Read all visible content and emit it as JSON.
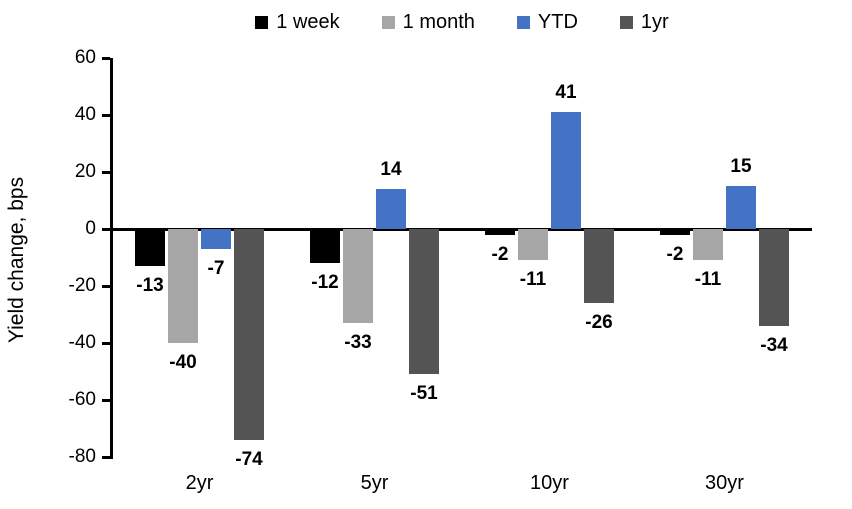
{
  "chart_data": {
    "type": "bar",
    "title": "",
    "xlabel": "",
    "ylabel": "Yield change, bps",
    "categories": [
      "2yr",
      "5yr",
      "10yr",
      "30yr"
    ],
    "series": [
      {
        "name": "1 week",
        "color": "#000000",
        "values": [
          -13,
          -12,
          -2,
          -2
        ]
      },
      {
        "name": "1 month",
        "color": "#A6A6A6",
        "values": [
          -40,
          -33,
          -11,
          -11
        ]
      },
      {
        "name": "YTD",
        "color": "#4472C4",
        "values": [
          -7,
          14,
          41,
          15
        ]
      },
      {
        "name": "1yr",
        "color": "#545454",
        "values": [
          -74,
          -51,
          -26,
          -34
        ]
      }
    ],
    "ylim": [
      -80,
      60
    ],
    "yticks": [
      60,
      40,
      20,
      0,
      -20,
      -40,
      -60,
      -80
    ],
    "grid": false,
    "legend_position": "top",
    "bar_labels": "outside-end"
  }
}
